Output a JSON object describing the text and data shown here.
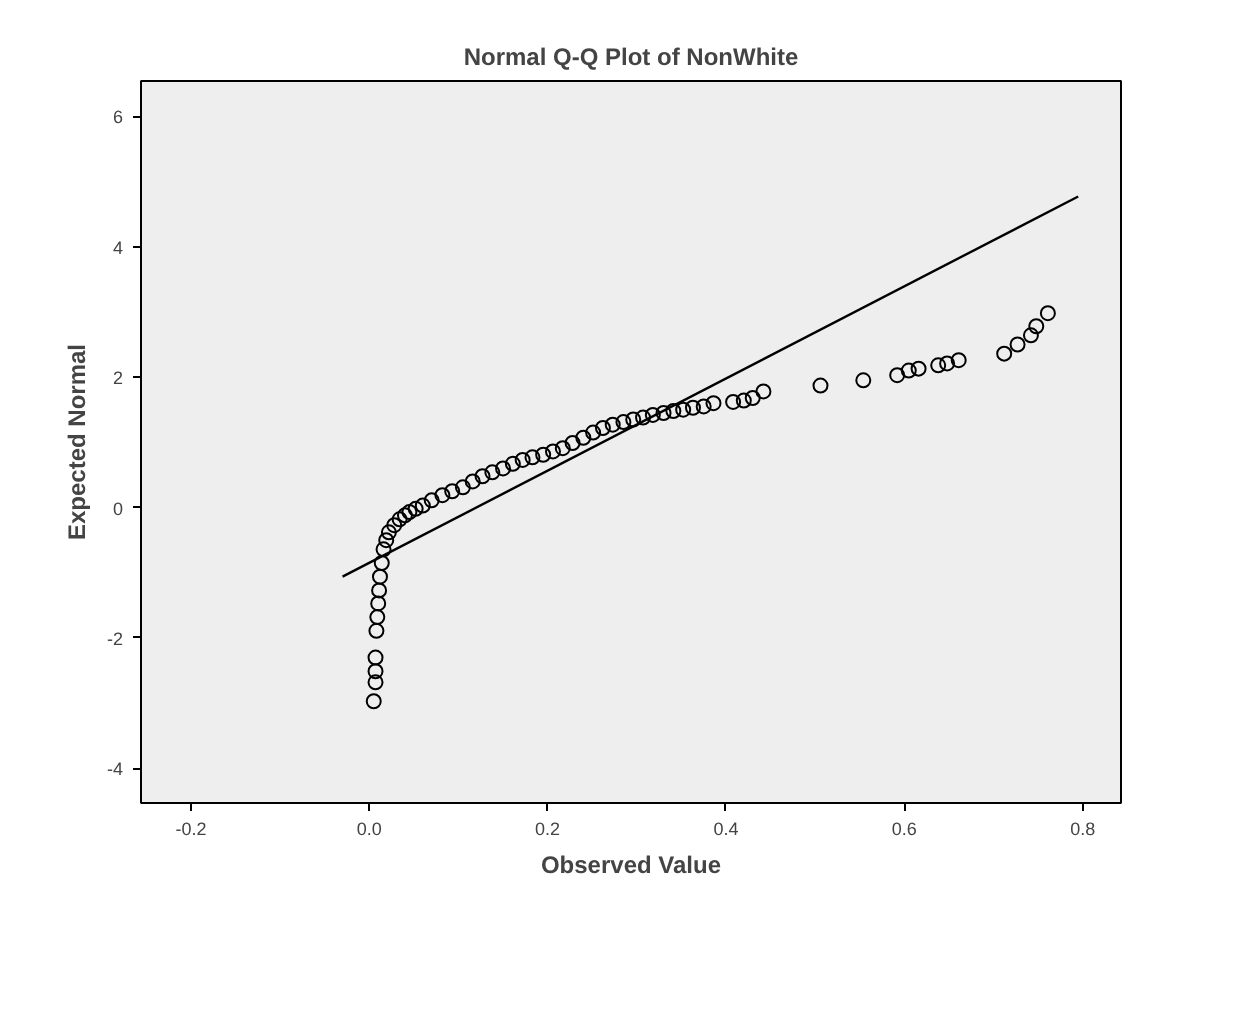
{
  "chart_data": {
    "type": "scatter",
    "title": "Normal Q-Q Plot of NonWhite",
    "xlabel": "Observed Value",
    "ylabel": "Expected Normal",
    "grid": false,
    "xlim": [
      -0.256,
      0.843
    ],
    "ylim": [
      -4.53,
      6.54
    ],
    "xticks": [
      -0.2,
      {
        "value": 0,
        "label": "0.0"
      },
      0.2,
      0.4,
      0.6,
      0.8
    ],
    "yticks": [
      -4,
      -2,
      0,
      2,
      4,
      6
    ],
    "series": [
      {
        "marker": "circle",
        "color": "#000000",
        "x": [
          0.005,
          0.007,
          0.007,
          0.007,
          0.008,
          0.009,
          0.01,
          0.011,
          0.012,
          0.014,
          0.016,
          0.019,
          0.022,
          0.028,
          0.034,
          0.04,
          0.045,
          0.052,
          0.06,
          0.07,
          0.082,
          0.093,
          0.105,
          0.116,
          0.127,
          0.138,
          0.15,
          0.161,
          0.172,
          0.183,
          0.195,
          0.206,
          0.217,
          0.228,
          0.24,
          0.251,
          0.262,
          0.273,
          0.285,
          0.296,
          0.307,
          0.318,
          0.33,
          0.341,
          0.352,
          0.363,
          0.375,
          0.386,
          0.408,
          0.42,
          0.43,
          0.442,
          0.506,
          0.554,
          0.592,
          0.605,
          0.616,
          0.638,
          0.648,
          0.661,
          0.712,
          0.727,
          0.742,
          0.748,
          0.761
        ],
        "values": [
          -2.97,
          -2.68,
          -2.51,
          -2.3,
          -1.89,
          -1.68,
          -1.47,
          -1.27,
          -1.06,
          -0.85,
          -0.64,
          -0.5,
          -0.38,
          -0.27,
          -0.18,
          -0.12,
          -0.07,
          -0.02,
          0.03,
          0.11,
          0.19,
          0.25,
          0.31,
          0.4,
          0.48,
          0.54,
          0.6,
          0.67,
          0.73,
          0.77,
          0.81,
          0.86,
          0.91,
          0.99,
          1.07,
          1.15,
          1.22,
          1.27,
          1.31,
          1.35,
          1.38,
          1.42,
          1.45,
          1.48,
          1.5,
          1.53,
          1.55,
          1.6,
          1.62,
          1.64,
          1.68,
          1.78,
          1.87,
          1.95,
          2.03,
          2.1,
          2.13,
          2.18,
          2.21,
          2.26,
          2.36,
          2.5,
          2.64,
          2.78,
          2.98
        ]
      },
      {
        "type": "line",
        "color": "#000000",
        "x": [
          -0.03,
          0.795
        ],
        "values": [
          -1.06,
          4.77
        ]
      }
    ]
  }
}
